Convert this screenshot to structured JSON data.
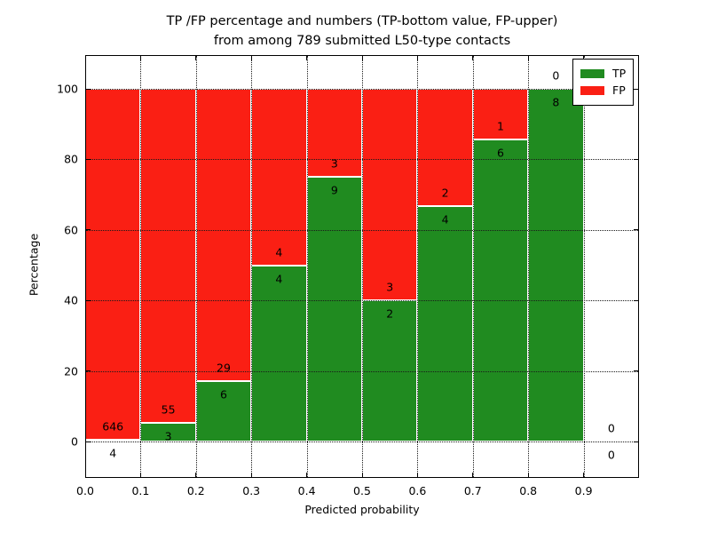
{
  "chart_data": {
    "type": "bar",
    "stacked": true,
    "units": "percent",
    "title_line1": "TP /FP percentage and numbers (TP-bottom value, FP-upper)",
    "title_line2": "from among 789 submitted L50-type contacts",
    "xlabel": "Predicted probability",
    "ylabel": "Percentage",
    "xlim": [
      0.0,
      1.0
    ],
    "ylim": [
      -10,
      110
    ],
    "grid": true,
    "xticks": [
      {
        "value": 0.0,
        "label": "0.0"
      },
      {
        "value": 0.1,
        "label": "0.1"
      },
      {
        "value": 0.2,
        "label": "0.2"
      },
      {
        "value": 0.3,
        "label": "0.3"
      },
      {
        "value": 0.4,
        "label": "0.4"
      },
      {
        "value": 0.5,
        "label": "0.5"
      },
      {
        "value": 0.6,
        "label": "0.6"
      },
      {
        "value": 0.7,
        "label": "0.7"
      },
      {
        "value": 0.8,
        "label": "0.8"
      },
      {
        "value": 0.9,
        "label": "0.9"
      }
    ],
    "yticks": [
      {
        "value": 0,
        "label": "0"
      },
      {
        "value": 20,
        "label": "20"
      },
      {
        "value": 40,
        "label": "40"
      },
      {
        "value": 60,
        "label": "60"
      },
      {
        "value": 80,
        "label": "80"
      },
      {
        "value": 100,
        "label": "100"
      }
    ],
    "legend": {
      "position": "upper right",
      "entries": [
        {
          "label": "TP",
          "color": "#208b20"
        },
        {
          "label": "FP",
          "color": "#fa1f14"
        }
      ]
    },
    "bins": [
      {
        "range": [
          0.0,
          0.1
        ],
        "tp": 4,
        "fp": 646,
        "tp_percent": 0.62,
        "fp_percent": 99.38
      },
      {
        "range": [
          0.1,
          0.2
        ],
        "tp": 3,
        "fp": 55,
        "tp_percent": 5.17,
        "fp_percent": 94.83
      },
      {
        "range": [
          0.2,
          0.3
        ],
        "tp": 6,
        "fp": 29,
        "tp_percent": 17.14,
        "fp_percent": 82.86
      },
      {
        "range": [
          0.3,
          0.4
        ],
        "tp": 4,
        "fp": 4,
        "tp_percent": 50.0,
        "fp_percent": 50.0
      },
      {
        "range": [
          0.4,
          0.5
        ],
        "tp": 9,
        "fp": 3,
        "tp_percent": 75.0,
        "fp_percent": 25.0
      },
      {
        "range": [
          0.5,
          0.6
        ],
        "tp": 2,
        "fp": 3,
        "tp_percent": 40.0,
        "fp_percent": 60.0
      },
      {
        "range": [
          0.6,
          0.7
        ],
        "tp": 4,
        "fp": 2,
        "tp_percent": 66.67,
        "fp_percent": 33.33
      },
      {
        "range": [
          0.7,
          0.8
        ],
        "tp": 6,
        "fp": 1,
        "tp_percent": 85.71,
        "fp_percent": 14.29
      },
      {
        "range": [
          0.8,
          0.9
        ],
        "tp": 8,
        "fp": 0,
        "tp_percent": 100.0,
        "fp_percent": 0.0
      },
      {
        "range": [
          0.9,
          1.0
        ],
        "tp": 0,
        "fp": 0,
        "tp_percent": 0.0,
        "fp_percent": 0.0
      }
    ]
  }
}
